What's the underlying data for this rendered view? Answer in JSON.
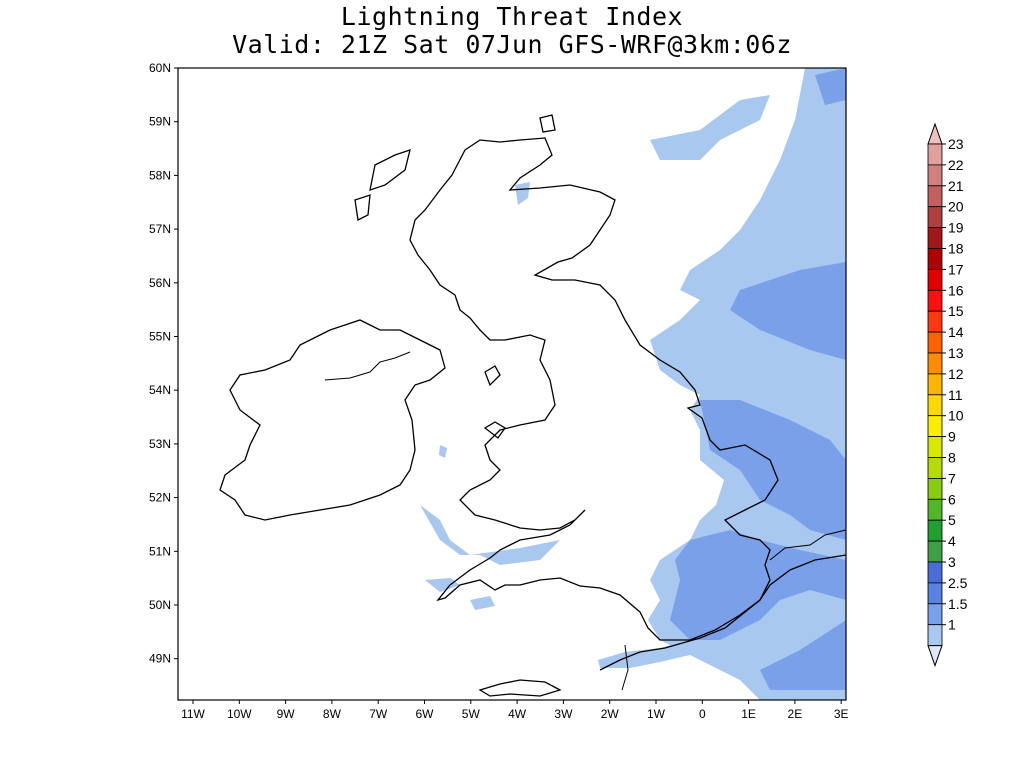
{
  "title": {
    "line1": "Lightning Threat Index",
    "line2": "Valid: 21Z Sat 07Jun GFS-WRF@3km:06z"
  },
  "map": {
    "lat_labels": [
      "60N",
      "59N",
      "58N",
      "57N",
      "56N",
      "55N",
      "54N",
      "53N",
      "52N",
      "51N",
      "50N",
      "49N"
    ],
    "lon_labels": [
      "11W",
      "10W",
      "9W",
      "8W",
      "7W",
      "6W",
      "5W",
      "4W",
      "3W",
      "2W",
      "1W",
      "0",
      "1E",
      "2E",
      "3E"
    ],
    "lat_range": [
      48.3,
      60
    ],
    "lon_range": [
      -11.2,
      3.2
    ]
  },
  "legend": {
    "items": [
      {
        "label": "23",
        "color": "#e0a0a0"
      },
      {
        "label": "22",
        "color": "#d08080"
      },
      {
        "label": "21",
        "color": "#c06060"
      },
      {
        "label": "20",
        "color": "#b04040"
      },
      {
        "label": "19",
        "color": "#a01818"
      },
      {
        "label": "18",
        "color": "#b00000"
      },
      {
        "label": "17",
        "color": "#e00000"
      },
      {
        "label": "16",
        "color": "#ff1010"
      },
      {
        "label": "15",
        "color": "#ff3810"
      },
      {
        "label": "14",
        "color": "#ff6000"
      },
      {
        "label": "13",
        "color": "#ff8c00"
      },
      {
        "label": "12",
        "color": "#ffb400"
      },
      {
        "label": "11",
        "color": "#ffd800"
      },
      {
        "label": "10",
        "color": "#f8f000"
      },
      {
        "label": "9",
        "color": "#d8e800"
      },
      {
        "label": "8",
        "color": "#b4dc00"
      },
      {
        "label": "7",
        "color": "#88cc10"
      },
      {
        "label": "6",
        "color": "#50b828"
      },
      {
        "label": "5",
        "color": "#20a030"
      },
      {
        "label": "4",
        "color": "#40a048"
      },
      {
        "label": "3",
        "color": "#4a6ed8"
      },
      {
        "label": "2.5",
        "color": "#5a82e0"
      },
      {
        "label": "1.5",
        "color": "#7aa0ea"
      },
      {
        "label": "1",
        "color": "#a8c8f0"
      }
    ],
    "low_color": "#dde8f8",
    "high_color": "#f0c0c0"
  }
}
